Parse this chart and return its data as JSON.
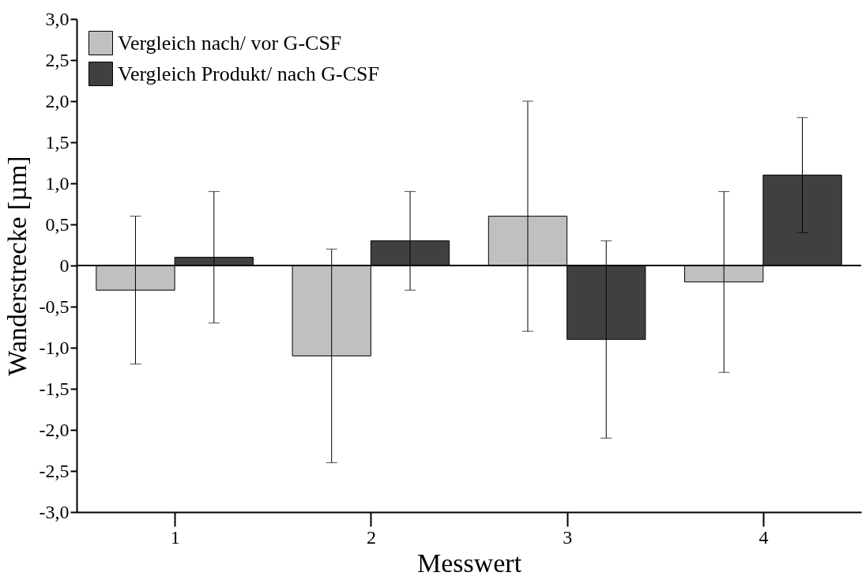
{
  "chart_data": {
    "type": "bar",
    "xlabel": "Messwert",
    "ylabel": "Wanderstrecke [µm]",
    "categories": [
      "1",
      "2",
      "3",
      "4"
    ],
    "series": [
      {
        "name": "Vergleich nach/ vor G-CSF",
        "color": "#c0c0c0",
        "values": [
          -0.3,
          -1.1,
          0.6,
          -0.2
        ],
        "errors": [
          0.9,
          1.3,
          1.4,
          1.1
        ]
      },
      {
        "name": "Vergleich Produkt/ nach G-CSF",
        "color": "#404040",
        "values": [
          0.1,
          0.3,
          -0.9,
          1.1
        ],
        "errors": [
          0.8,
          0.6,
          1.2,
          0.7
        ]
      }
    ],
    "ylim": [
      -3,
      3
    ],
    "yticks": [
      {
        "value": -3,
        "label": "-3,0"
      },
      {
        "value": -2.5,
        "label": "-2,5"
      },
      {
        "value": -2,
        "label": "-2,0"
      },
      {
        "value": -1.5,
        "label": "-1,5"
      },
      {
        "value": -1,
        "label": "-1,0"
      },
      {
        "value": -0.5,
        "label": "-0,5"
      },
      0,
      {
        "value": 0.5,
        "label": "0,5"
      },
      {
        "value": 1,
        "label": "1,0"
      },
      {
        "value": 1.5,
        "label": "1,5"
      },
      {
        "value": 2,
        "label": "2,0"
      },
      {
        "value": 2.5,
        "label": "2,5"
      },
      {
        "value": 3,
        "label": "3,0"
      }
    ],
    "ref_lines": [
      {
        "axis": "y",
        "value": 0,
        "color": "#000000"
      }
    ],
    "grid": false,
    "legend": "top left"
  }
}
